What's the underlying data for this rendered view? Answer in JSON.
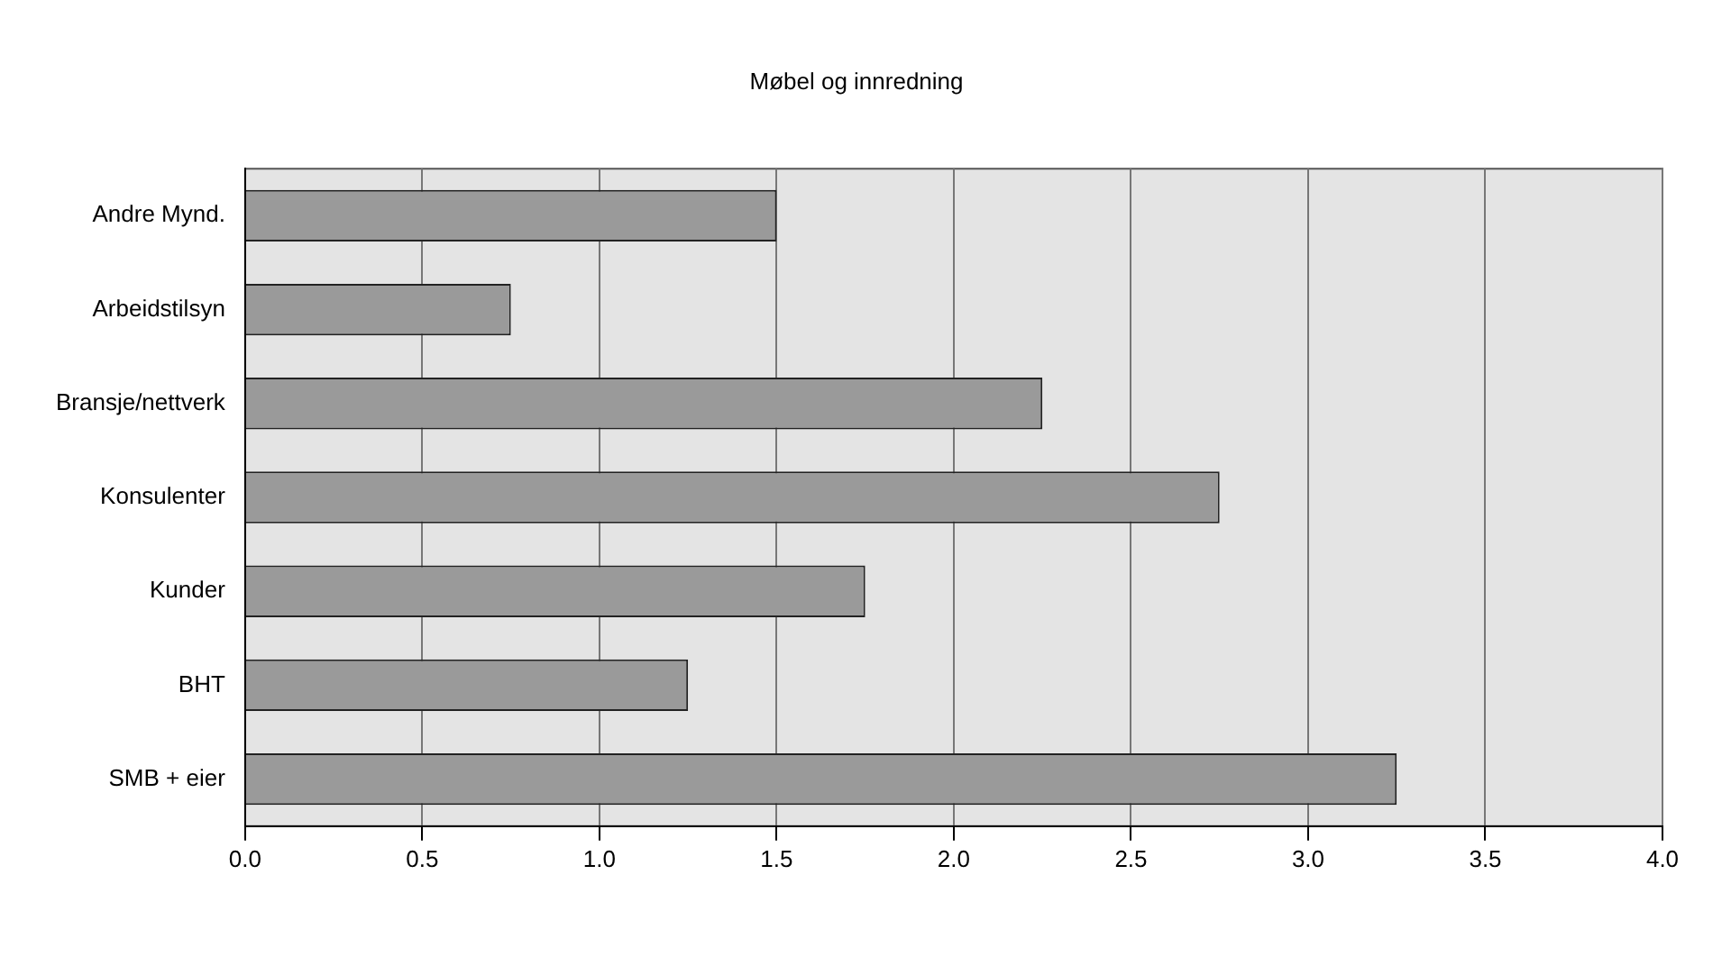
{
  "chart_data": {
    "type": "bar",
    "orientation": "horizontal",
    "title": "Møbel og innredning",
    "categories": [
      "Andre Mynd.",
      "Arbeidstilsyn",
      "Bransje/nettverk",
      "Konsulenter",
      "Kunder",
      "BHT",
      "SMB + eier"
    ],
    "values": [
      1.5,
      0.75,
      2.25,
      2.75,
      1.75,
      1.25,
      3.25
    ],
    "color": "#9a9a9a",
    "xlim": [
      0,
      4
    ],
    "xticks": [
      {
        "value": 0,
        "label": "0.0"
      },
      {
        "value": 0.5,
        "label": "0.5"
      },
      {
        "value": 1,
        "label": "1.0"
      },
      {
        "value": 1.5,
        "label": "1.5"
      },
      {
        "value": 2,
        "label": "2.0"
      },
      {
        "value": 2.5,
        "label": "2.5"
      },
      {
        "value": 3,
        "label": "3.0"
      },
      {
        "value": 3.5,
        "label": "3.5"
      },
      {
        "value": 4,
        "label": "4.0"
      }
    ],
    "grid": "x"
  }
}
